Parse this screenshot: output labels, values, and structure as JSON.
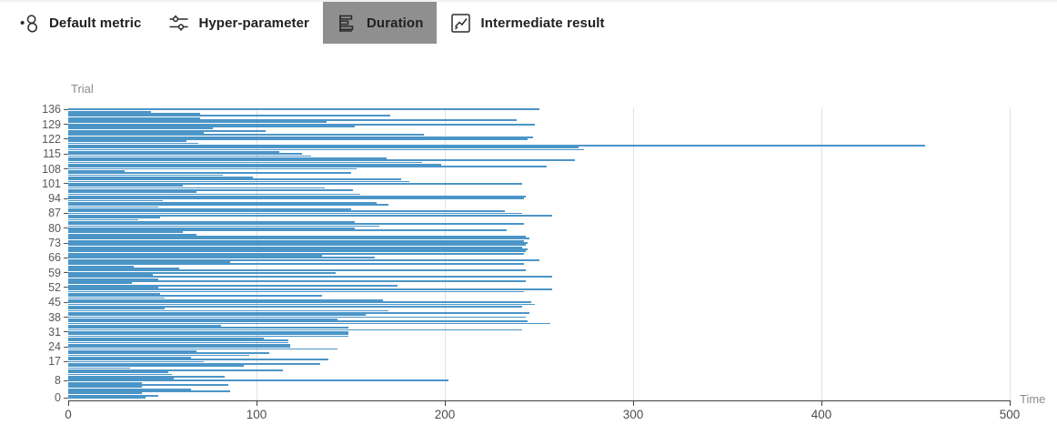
{
  "header": {
    "tabs": [
      {
        "label": "Default metric",
        "icon": "scatter-plot-icon",
        "selected": false
      },
      {
        "label": "Hyper-parameter",
        "icon": "sliders-icon",
        "selected": false
      },
      {
        "label": "Duration",
        "icon": "bar-chart-icon",
        "selected": true
      },
      {
        "label": "Intermediate result",
        "icon": "line-chart-icon",
        "selected": false
      }
    ]
  },
  "colors": {
    "bar": "#4b95c7",
    "selected_tab_bg": "#8f8f8f",
    "axis_line": "#404040",
    "gridline": "#e2e2e2",
    "tick_label": "#595959",
    "axis_title": "#8c8c8c"
  },
  "chart_data": {
    "type": "bar",
    "orientation": "horizontal",
    "title": "",
    "ylabel": "Trial",
    "xlabel": "Time",
    "xlim": [
      0,
      500
    ],
    "x_ticks": [
      0,
      100,
      200,
      300,
      400,
      500
    ],
    "y_tick_trials": [
      0,
      8,
      17,
      24,
      31,
      38,
      45,
      52,
      59,
      66,
      73,
      80,
      87,
      94,
      101,
      108,
      115,
      122,
      129,
      136
    ],
    "grid": true,
    "legend": "none",
    "categories_range": [
      0,
      136
    ],
    "values": [
      41,
      48,
      39,
      86,
      65,
      39,
      85,
      39,
      202,
      56,
      83,
      55,
      53,
      114,
      33,
      93,
      134,
      72,
      138,
      65,
      96,
      107,
      68,
      143,
      118,
      118,
      117,
      117,
      104,
      149,
      149,
      149,
      241,
      149,
      81,
      256,
      244,
      143,
      243,
      158,
      245,
      170,
      51,
      241,
      248,
      246,
      167,
      51,
      135,
      49,
      242,
      257,
      48,
      175,
      34,
      243,
      48,
      257,
      45,
      142,
      243,
      59,
      35,
      242,
      86,
      250,
      163,
      135,
      242,
      243,
      244,
      241,
      243,
      244,
      242,
      245,
      243,
      68,
      61,
      233,
      152,
      165,
      242,
      152,
      37,
      49,
      257,
      241,
      232,
      150,
      48,
      170,
      164,
      50,
      242,
      243,
      155,
      68,
      151,
      136,
      61,
      241,
      181,
      177,
      98,
      82,
      150,
      30,
      153,
      254,
      198,
      188,
      269,
      169,
      129,
      124,
      112,
      274,
      271,
      455,
      69,
      63,
      244,
      247,
      189,
      72,
      105,
      77,
      152,
      248,
      137,
      238,
      70,
      171,
      70,
      44,
      250
    ]
  }
}
